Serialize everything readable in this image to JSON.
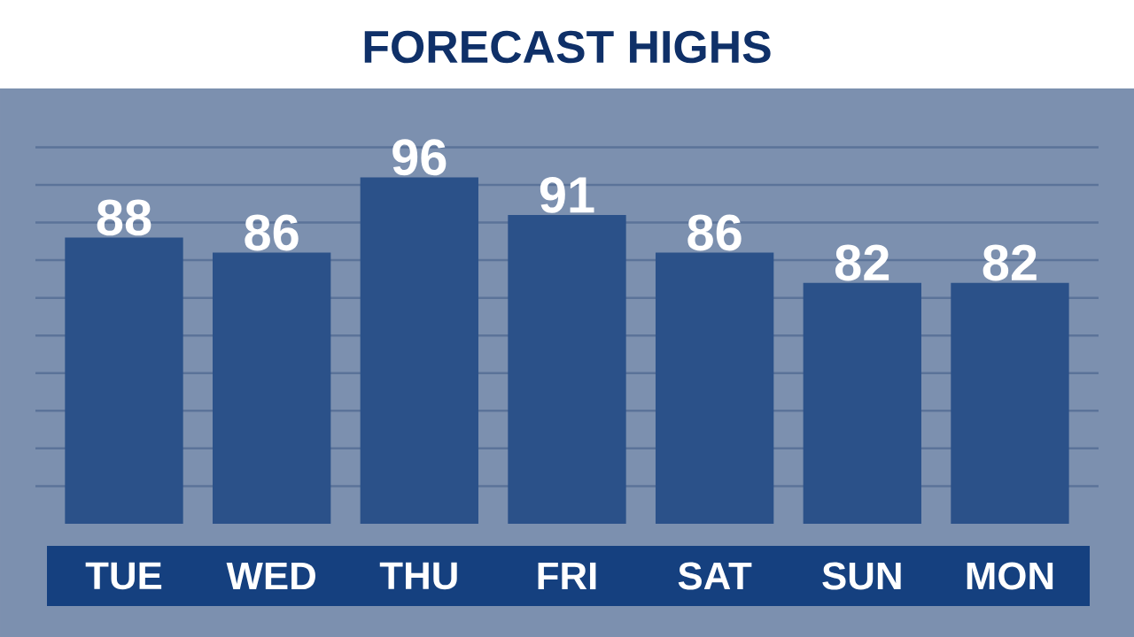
{
  "chart_data": {
    "type": "bar",
    "title": "FORECAST HIGHS",
    "categories": [
      "TUE",
      "WED",
      "THU",
      "FRI",
      "SAT",
      "SUN",
      "MON"
    ],
    "values": [
      88,
      86,
      96,
      91,
      86,
      82,
      82
    ],
    "color": "#2b5189",
    "data_labels": true,
    "ylim": [
      50,
      100
    ],
    "yticks": [
      {
        "value": 55,
        "label": null
      },
      {
        "value": 60,
        "label": null
      },
      {
        "value": 65,
        "label": null
      },
      {
        "value": 70,
        "label": null
      },
      {
        "value": 75,
        "label": null
      },
      {
        "value": 80,
        "label": null
      },
      {
        "value": 85,
        "label": null
      },
      {
        "value": 90,
        "label": null
      },
      {
        "value": 95,
        "label": null
      },
      {
        "value": 100,
        "label": null
      }
    ],
    "grid": "y",
    "tick_labels": "x"
  }
}
